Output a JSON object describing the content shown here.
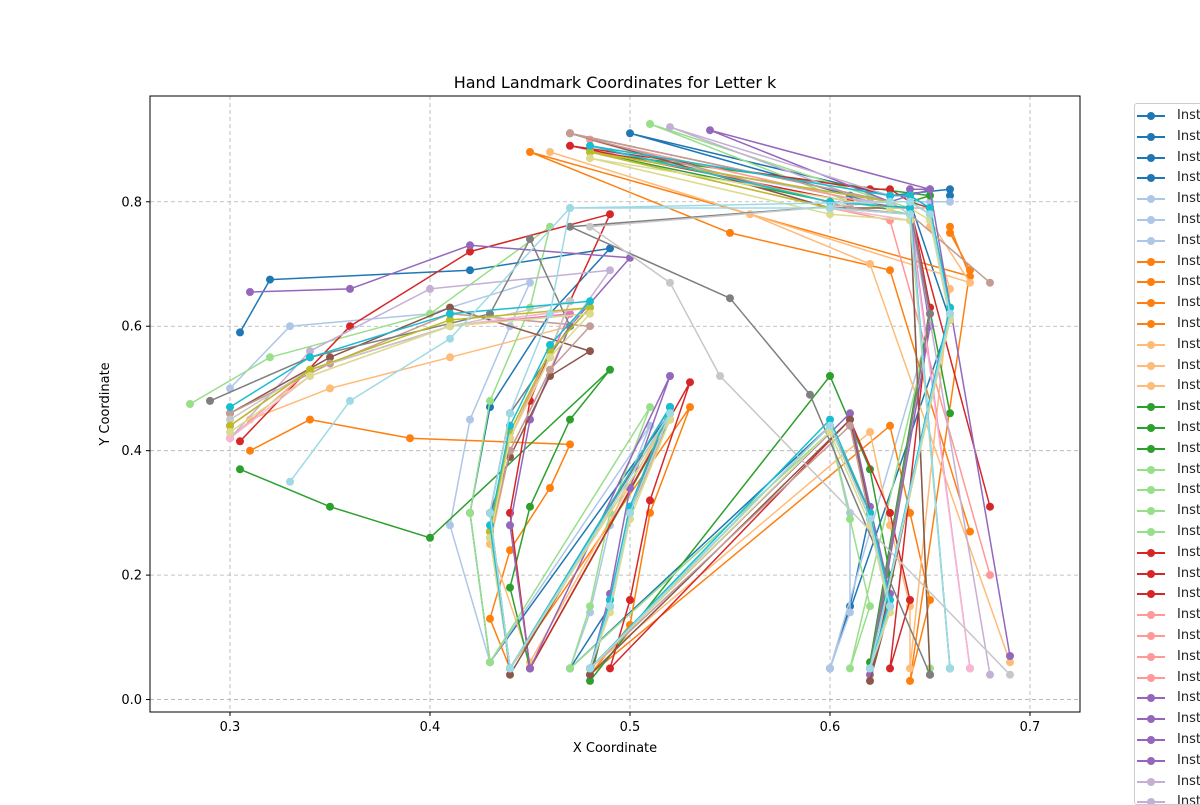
{
  "chart_data": {
    "type": "line",
    "title": "Hand Landmark Coordinates for Letter k",
    "xlabel": "X Coordinate",
    "ylabel": "Y Coordinate",
    "xlim": [
      0.26,
      0.725
    ],
    "ylim": [
      -0.02,
      0.97
    ],
    "xticks": [
      "0.3",
      "0.4",
      "0.5",
      "0.6",
      "0.7"
    ],
    "xtick_values": [
      0.3,
      0.4,
      0.5,
      0.6,
      0.7
    ],
    "yticks": [
      "0.0",
      "0.2",
      "0.4",
      "0.6",
      "0.8"
    ],
    "ytick_values": [
      0.0,
      0.2,
      0.4,
      0.6,
      0.8
    ],
    "grid": true,
    "legend_placement": "outside-right",
    "palette": [
      "#1f77b4",
      "#aec7e8",
      "#ff7f0e",
      "#ffbb78",
      "#2ca02c",
      "#98df8a",
      "#d62728",
      "#ff9896",
      "#9467bd",
      "#c5b0d5",
      "#8c564b",
      "#c49c94",
      "#e377c2",
      "#f7b6d2",
      "#7f7f7f",
      "#c7c7c7",
      "#bcbd22",
      "#dbdb8d",
      "#17becf",
      "#9edae5"
    ],
    "legend_entries": [
      "Inst",
      "Inst",
      "Inst",
      "Inst",
      "Inst",
      "Inst",
      "Inst",
      "Inst",
      "Inst",
      "Inst",
      "Inst",
      "Inst",
      "Inst",
      "Inst",
      "Inst",
      "Inst",
      "Inst",
      "Inst",
      "Inst",
      "Inst",
      "Inst",
      "Inst",
      "Inst",
      "Inst",
      "Inst",
      "Inst",
      "Inst",
      "Inst",
      "Inst",
      "Inst",
      "Inst",
      "Inst",
      "Inst",
      "Inst"
    ],
    "legend_colors": [
      "#1f77b4",
      "#1f77b4",
      "#1f77b4",
      "#1f77b4",
      "#aec7e8",
      "#aec7e8",
      "#aec7e8",
      "#ff7f0e",
      "#ff7f0e",
      "#ff7f0e",
      "#ff7f0e",
      "#ffbb78",
      "#ffbb78",
      "#ffbb78",
      "#2ca02c",
      "#2ca02c",
      "#2ca02c",
      "#98df8a",
      "#98df8a",
      "#98df8a",
      "#98df8a",
      "#d62728",
      "#d62728",
      "#d62728",
      "#ff9896",
      "#ff9896",
      "#ff9896",
      "#ff9896",
      "#9467bd",
      "#9467bd",
      "#9467bd",
      "#9467bd",
      "#c5b0d5",
      "#c5b0d5"
    ],
    "series": [
      {
        "color": "#1f77b4",
        "x": [
          0.305,
          0.32,
          0.42,
          0.49,
          0.46,
          0.43,
          0.42,
          0.43,
          0.52,
          0.5,
          0.49,
          0.47,
          0.6,
          0.62,
          0.61,
          0.6,
          0.66,
          0.64,
          0.62,
          0.61,
          0.5,
          0.63,
          0.66,
          0.66
        ],
        "y": [
          0.59,
          0.675,
          0.69,
          0.725,
          0.62,
          0.47,
          0.3,
          0.06,
          0.46,
          0.3,
          0.15,
          0.05,
          0.44,
          0.3,
          0.15,
          0.05,
          0.61,
          0.8,
          0.8,
          0.81,
          0.91,
          0.81,
          0.82,
          0.81
        ]
      },
      {
        "color": "#aec7e8",
        "x": [
          0.3,
          0.33,
          0.4,
          0.45,
          0.44,
          0.42,
          0.41,
          0.43,
          0.51,
          0.49,
          0.48,
          0.47,
          0.6,
          0.61,
          0.61,
          0.6,
          0.65,
          0.64,
          0.63,
          0.62,
          0.49,
          0.62,
          0.65,
          0.66
        ],
        "y": [
          0.5,
          0.6,
          0.62,
          0.67,
          0.6,
          0.45,
          0.28,
          0.06,
          0.44,
          0.28,
          0.14,
          0.05,
          0.43,
          0.3,
          0.14,
          0.05,
          0.6,
          0.78,
          0.8,
          0.8,
          0.88,
          0.8,
          0.8,
          0.8
        ]
      },
      {
        "color": "#ff7f0e",
        "x": [
          0.31,
          0.34,
          0.39,
          0.47,
          0.46,
          0.44,
          0.43,
          0.44,
          0.53,
          0.51,
          0.5,
          0.48,
          0.63,
          0.64,
          0.65,
          0.64,
          0.67,
          0.66,
          0.66,
          0.67,
          0.45,
          0.55,
          0.63,
          0.67
        ],
        "y": [
          0.4,
          0.45,
          0.42,
          0.41,
          0.34,
          0.24,
          0.13,
          0.05,
          0.47,
          0.3,
          0.12,
          0.04,
          0.44,
          0.3,
          0.16,
          0.03,
          0.69,
          0.75,
          0.76,
          0.68,
          0.88,
          0.75,
          0.69,
          0.27
        ]
      },
      {
        "color": "#ffbb78",
        "x": [
          0.31,
          0.35,
          0.41,
          0.47,
          0.46,
          0.44,
          0.43,
          0.45,
          0.52,
          0.5,
          0.49,
          0.48,
          0.62,
          0.63,
          0.64,
          0.64,
          0.66,
          0.65,
          0.65,
          0.67,
          0.46,
          0.56,
          0.62,
          0.69
        ],
        "y": [
          0.45,
          0.5,
          0.55,
          0.6,
          0.53,
          0.4,
          0.25,
          0.06,
          0.46,
          0.3,
          0.15,
          0.05,
          0.43,
          0.28,
          0.15,
          0.05,
          0.66,
          0.76,
          0.77,
          0.67,
          0.88,
          0.78,
          0.7,
          0.06
        ]
      },
      {
        "color": "#2ca02c",
        "x": [
          0.305,
          0.35,
          0.4,
          0.49,
          0.47,
          0.45,
          0.44,
          0.45,
          0.52,
          0.5,
          0.49,
          0.48,
          0.6,
          0.62,
          0.63,
          0.62,
          0.65,
          0.64,
          0.64,
          0.65,
          0.48,
          0.6,
          0.64,
          0.66
        ],
        "y": [
          0.37,
          0.31,
          0.26,
          0.53,
          0.45,
          0.31,
          0.18,
          0.05,
          0.45,
          0.3,
          0.16,
          0.03,
          0.52,
          0.37,
          0.2,
          0.06,
          0.63,
          0.79,
          0.8,
          0.81,
          0.88,
          0.8,
          0.79,
          0.46
        ]
      },
      {
        "color": "#98df8a",
        "x": [
          0.28,
          0.32,
          0.4,
          0.46,
          0.45,
          0.43,
          0.42,
          0.43,
          0.51,
          0.49,
          0.48,
          0.47,
          0.6,
          0.61,
          0.62,
          0.61,
          0.65,
          0.64,
          0.63,
          0.62,
          0.51,
          0.61,
          0.64,
          0.65
        ],
        "y": [
          0.475,
          0.55,
          0.62,
          0.76,
          0.63,
          0.48,
          0.3,
          0.06,
          0.47,
          0.3,
          0.15,
          0.05,
          0.43,
          0.29,
          0.15,
          0.05,
          0.6,
          0.79,
          0.8,
          0.81,
          0.925,
          0.8,
          0.78,
          0.05
        ]
      },
      {
        "color": "#d62728",
        "x": [
          0.305,
          0.36,
          0.42,
          0.49,
          0.47,
          0.45,
          0.44,
          0.45,
          0.53,
          0.51,
          0.5,
          0.49,
          0.61,
          0.63,
          0.64,
          0.63,
          0.65,
          0.64,
          0.63,
          0.62,
          0.47,
          0.61,
          0.64,
          0.68
        ],
        "y": [
          0.415,
          0.6,
          0.72,
          0.78,
          0.64,
          0.48,
          0.3,
          0.05,
          0.51,
          0.32,
          0.16,
          0.05,
          0.45,
          0.3,
          0.16,
          0.05,
          0.63,
          0.8,
          0.82,
          0.82,
          0.89,
          0.8,
          0.79,
          0.31
        ]
      },
      {
        "color": "#ff9896",
        "x": [
          0.3,
          0.34,
          0.41,
          0.48,
          0.46,
          0.44,
          0.43,
          0.44,
          0.52,
          0.5,
          0.49,
          0.48,
          0.6,
          0.62,
          0.63,
          0.62,
          0.66,
          0.65,
          0.64,
          0.63,
          0.48,
          0.6,
          0.63,
          0.68
        ],
        "y": [
          0.42,
          0.53,
          0.6,
          0.63,
          0.56,
          0.42,
          0.27,
          0.05,
          0.45,
          0.3,
          0.15,
          0.05,
          0.44,
          0.3,
          0.15,
          0.05,
          0.62,
          0.79,
          0.79,
          0.79,
          0.9,
          0.79,
          0.77,
          0.2
        ]
      },
      {
        "color": "#9467bd",
        "x": [
          0.31,
          0.36,
          0.42,
          0.5,
          0.47,
          0.45,
          0.44,
          0.45,
          0.52,
          0.5,
          0.49,
          0.48,
          0.61,
          0.62,
          0.63,
          0.62,
          0.65,
          0.64,
          0.64,
          0.65,
          0.54,
          0.63,
          0.65,
          0.69
        ],
        "y": [
          0.655,
          0.66,
          0.73,
          0.71,
          0.6,
          0.45,
          0.28,
          0.05,
          0.52,
          0.34,
          0.17,
          0.05,
          0.46,
          0.31,
          0.17,
          0.04,
          0.6,
          0.8,
          0.82,
          0.82,
          0.915,
          0.8,
          0.82,
          0.07
        ]
      },
      {
        "color": "#c5b0d5",
        "x": [
          0.3,
          0.34,
          0.4,
          0.49,
          0.47,
          0.44,
          0.43,
          0.44,
          0.52,
          0.5,
          0.49,
          0.48,
          0.6,
          0.62,
          0.63,
          0.62,
          0.66,
          0.65,
          0.64,
          0.63,
          0.52,
          0.62,
          0.64,
          0.68
        ],
        "y": [
          0.42,
          0.56,
          0.66,
          0.69,
          0.6,
          0.46,
          0.3,
          0.05,
          0.47,
          0.31,
          0.16,
          0.05,
          0.44,
          0.3,
          0.15,
          0.05,
          0.62,
          0.79,
          0.81,
          0.81,
          0.92,
          0.8,
          0.8,
          0.04
        ]
      },
      {
        "color": "#8c564b",
        "x": [
          0.3,
          0.35,
          0.41,
          0.48,
          0.46,
          0.44,
          0.43,
          0.44,
          0.52,
          0.5,
          0.49,
          0.48,
          0.61,
          0.62,
          0.63,
          0.62,
          0.66,
          0.65,
          0.64,
          0.63,
          0.47,
          0.6,
          0.64,
          0.65
        ],
        "y": [
          0.46,
          0.55,
          0.63,
          0.56,
          0.52,
          0.39,
          0.3,
          0.04,
          0.47,
          0.3,
          0.15,
          0.04,
          0.45,
          0.3,
          0.15,
          0.03,
          0.63,
          0.79,
          0.8,
          0.8,
          0.91,
          0.79,
          0.79,
          0.04
        ]
      },
      {
        "color": "#c49c94",
        "x": [
          0.3,
          0.35,
          0.41,
          0.48,
          0.46,
          0.44,
          0.43,
          0.44,
          0.52,
          0.5,
          0.49,
          0.48,
          0.61,
          0.62,
          0.63,
          0.62,
          0.66,
          0.65,
          0.64,
          0.63,
          0.47,
          0.61,
          0.64,
          0.68
        ],
        "y": [
          0.46,
          0.54,
          0.62,
          0.6,
          0.53,
          0.4,
          0.26,
          0.05,
          0.46,
          0.3,
          0.15,
          0.05,
          0.44,
          0.29,
          0.15,
          0.05,
          0.61,
          0.78,
          0.8,
          0.8,
          0.91,
          0.79,
          0.78,
          0.67
        ]
      },
      {
        "color": "#e377c2",
        "x": [
          0.3,
          0.34,
          0.41,
          0.47,
          0.46,
          0.44,
          0.43,
          0.44,
          0.52,
          0.5,
          0.49,
          0.48,
          0.6,
          0.62,
          0.63,
          0.62,
          0.65,
          0.64,
          0.64,
          0.63,
          0.48,
          0.6,
          0.64,
          0.67
        ],
        "y": [
          0.44,
          0.53,
          0.6,
          0.62,
          0.55,
          0.42,
          0.27,
          0.05,
          0.46,
          0.3,
          0.15,
          0.05,
          0.44,
          0.29,
          0.15,
          0.05,
          0.62,
          0.78,
          0.8,
          0.8,
          0.88,
          0.79,
          0.78,
          0.05
        ]
      },
      {
        "color": "#f7b6d2",
        "x": [
          0.3,
          0.34,
          0.41,
          0.48,
          0.46,
          0.44,
          0.43,
          0.44,
          0.52,
          0.5,
          0.49,
          0.48,
          0.6,
          0.62,
          0.63,
          0.62,
          0.66,
          0.65,
          0.64,
          0.63,
          0.48,
          0.6,
          0.64,
          0.67
        ],
        "y": [
          0.42,
          0.52,
          0.6,
          0.63,
          0.56,
          0.43,
          0.27,
          0.05,
          0.46,
          0.3,
          0.15,
          0.05,
          0.44,
          0.29,
          0.15,
          0.05,
          0.62,
          0.78,
          0.8,
          0.8,
          0.88,
          0.79,
          0.77,
          0.05
        ]
      },
      {
        "color": "#7f7f7f",
        "x": [
          0.29,
          0.34,
          0.43,
          0.45,
          0.47,
          0.44,
          0.43,
          0.44,
          0.52,
          0.5,
          0.49,
          0.48,
          0.6,
          0.62,
          0.63,
          0.62,
          0.65,
          0.64,
          0.64,
          0.63,
          0.47,
          0.55,
          0.59,
          0.65
        ],
        "y": [
          0.48,
          0.55,
          0.62,
          0.74,
          0.6,
          0.46,
          0.3,
          0.05,
          0.47,
          0.3,
          0.15,
          0.05,
          0.44,
          0.3,
          0.15,
          0.05,
          0.62,
          0.79,
          0.8,
          0.8,
          0.76,
          0.645,
          0.49,
          0.04
        ]
      },
      {
        "color": "#c7c7c7",
        "x": [
          0.3,
          0.34,
          0.41,
          0.47,
          0.46,
          0.44,
          0.43,
          0.44,
          0.52,
          0.5,
          0.49,
          0.48,
          0.6,
          0.62,
          0.63,
          0.62,
          0.66,
          0.65,
          0.64,
          0.63,
          0.48,
          0.52,
          0.545,
          0.69
        ],
        "y": [
          0.45,
          0.53,
          0.6,
          0.64,
          0.56,
          0.43,
          0.27,
          0.05,
          0.46,
          0.3,
          0.15,
          0.05,
          0.44,
          0.29,
          0.15,
          0.05,
          0.62,
          0.78,
          0.8,
          0.8,
          0.76,
          0.67,
          0.52,
          0.04
        ]
      },
      {
        "color": "#bcbd22",
        "x": [
          0.3,
          0.34,
          0.41,
          0.48,
          0.46,
          0.44,
          0.43,
          0.44,
          0.52,
          0.5,
          0.49,
          0.48,
          0.6,
          0.62,
          0.63,
          0.62,
          0.66,
          0.65,
          0.64,
          0.63,
          0.48,
          0.6,
          0.64,
          0.66
        ],
        "y": [
          0.44,
          0.53,
          0.61,
          0.63,
          0.56,
          0.43,
          0.27,
          0.05,
          0.46,
          0.3,
          0.15,
          0.05,
          0.44,
          0.29,
          0.15,
          0.05,
          0.62,
          0.78,
          0.8,
          0.8,
          0.88,
          0.79,
          0.78,
          0.05
        ]
      },
      {
        "color": "#dbdb8d",
        "x": [
          0.3,
          0.34,
          0.41,
          0.48,
          0.46,
          0.44,
          0.43,
          0.44,
          0.52,
          0.5,
          0.49,
          0.48,
          0.6,
          0.62,
          0.63,
          0.62,
          0.66,
          0.65,
          0.64,
          0.63,
          0.48,
          0.6,
          0.64,
          0.66
        ],
        "y": [
          0.43,
          0.52,
          0.6,
          0.62,
          0.55,
          0.42,
          0.26,
          0.05,
          0.45,
          0.29,
          0.14,
          0.05,
          0.43,
          0.28,
          0.14,
          0.05,
          0.61,
          0.77,
          0.79,
          0.79,
          0.87,
          0.78,
          0.77,
          0.05
        ]
      },
      {
        "color": "#17becf",
        "x": [
          0.3,
          0.34,
          0.41,
          0.48,
          0.46,
          0.44,
          0.43,
          0.44,
          0.52,
          0.5,
          0.49,
          0.48,
          0.6,
          0.62,
          0.63,
          0.62,
          0.66,
          0.65,
          0.64,
          0.63,
          0.48,
          0.6,
          0.64,
          0.66
        ],
        "y": [
          0.47,
          0.55,
          0.62,
          0.64,
          0.57,
          0.44,
          0.28,
          0.05,
          0.47,
          0.31,
          0.16,
          0.05,
          0.45,
          0.3,
          0.16,
          0.05,
          0.63,
          0.79,
          0.81,
          0.81,
          0.89,
          0.8,
          0.79,
          0.05
        ]
      },
      {
        "color": "#9edae5",
        "x": [
          0.33,
          0.36,
          0.41,
          0.47,
          0.46,
          0.44,
          0.43,
          0.44,
          0.52,
          0.5,
          0.49,
          0.48,
          0.6,
          0.62,
          0.63,
          0.62,
          0.66,
          0.65,
          0.64,
          0.63,
          0.47,
          0.6,
          0.64,
          0.66
        ],
        "y": [
          0.35,
          0.48,
          0.58,
          0.79,
          0.62,
          0.46,
          0.3,
          0.05,
          0.46,
          0.3,
          0.15,
          0.05,
          0.44,
          0.29,
          0.15,
          0.05,
          0.62,
          0.78,
          0.8,
          0.8,
          0.79,
          0.79,
          0.78,
          0.05
        ]
      }
    ]
  }
}
